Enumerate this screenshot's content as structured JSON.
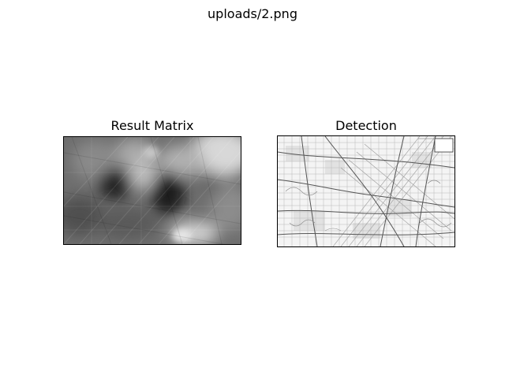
{
  "figure": {
    "suptitle": "uploads/2.png"
  },
  "panels": [
    {
      "title": "Result Matrix",
      "content": "grayscale-matching-heatmap"
    },
    {
      "title": "Detection",
      "content": "street-map-with-detection-box"
    }
  ],
  "colors": {
    "background": "#ffffff",
    "frame": "#000000",
    "heatmap_dark": "#1e1e1e",
    "heatmap_light": "#e6e6e6",
    "map_background": "#f4f4f4",
    "map_roads": "#777777"
  }
}
